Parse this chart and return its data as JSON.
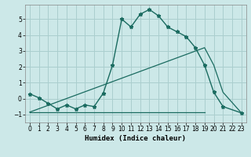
{
  "bg_color": "#cce8e8",
  "grid_color": "#aacece",
  "line_color": "#1a6b60",
  "xlabel": "Humidex (Indice chaleur)",
  "xlim": [
    -0.5,
    23.5
  ],
  "ylim": [
    -1.5,
    5.9
  ],
  "xticks": [
    0,
    1,
    2,
    3,
    4,
    5,
    6,
    7,
    8,
    9,
    10,
    11,
    12,
    13,
    14,
    15,
    16,
    17,
    18,
    19,
    20,
    21,
    22,
    23
  ],
  "yticks": [
    -1,
    0,
    1,
    2,
    3,
    4,
    5
  ],
  "series": [
    {
      "x": [
        0,
        1,
        2,
        3,
        4,
        5,
        6,
        7,
        8,
        9,
        10,
        11,
        12,
        13,
        14,
        15,
        16,
        17,
        18,
        19,
        20,
        21,
        23
      ],
      "y": [
        0.3,
        0.05,
        -0.3,
        -0.65,
        -0.4,
        -0.65,
        -0.4,
        -0.5,
        0.35,
        2.1,
        5.0,
        4.5,
        5.3,
        5.6,
        5.2,
        4.5,
        4.2,
        3.9,
        3.2,
        2.1,
        0.4,
        -0.5,
        -0.9
      ],
      "marker": true,
      "lw": 1.0
    },
    {
      "x": [
        0,
        19
      ],
      "y": [
        -0.85,
        -0.85
      ],
      "marker": false,
      "lw": 0.9
    },
    {
      "x": [
        0,
        19,
        20,
        21,
        23
      ],
      "y": [
        -0.85,
        3.2,
        2.1,
        0.4,
        -0.9
      ],
      "marker": false,
      "lw": 0.9
    }
  ]
}
